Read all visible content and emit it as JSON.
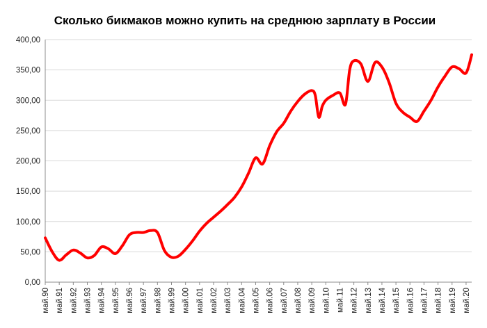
{
  "chart_data": {
    "type": "line",
    "title": "Сколько бикмаков можно купить на среднюю зарплату в России",
    "xlabel": "",
    "ylabel": "",
    "ylim": [
      0,
      400
    ],
    "y_ticks": [
      "0,00",
      "50,00",
      "100,00",
      "150,00",
      "200,00",
      "250,00",
      "300,00",
      "350,00",
      "400,00"
    ],
    "grid": true,
    "legend": "none",
    "line_color": "#ff0000",
    "x_ticks": [
      "май.90",
      "май.91",
      "май.92",
      "май.93",
      "май.94",
      "май.95",
      "май.96",
      "май.97",
      "май.98",
      "май.99",
      "май.00",
      "май.01",
      "май.02",
      "май.03",
      "май.04",
      "май.05",
      "май.06",
      "май.07",
      "май.08",
      "май.09",
      "май.10",
      "май.11",
      "май.12",
      "май.13",
      "май.14",
      "май.15",
      "май.16",
      "май.17",
      "май.18",
      "май.19",
      "май.20"
    ],
    "series": [
      {
        "x": [
          1990,
          1990.5,
          1991,
          1991.5,
          1992,
          1992.5,
          1993,
          1993.5,
          1994,
          1994.5,
          1995,
          1995.5,
          1996,
          1996.5,
          1997,
          1997.5,
          1998,
          1998.5,
          1999,
          1999.5,
          2000,
          2000.5,
          2001,
          2001.5,
          2002,
          2002.5,
          2003,
          2003.5,
          2004,
          2004.5,
          2005,
          2005.5,
          2006,
          2006.5,
          2007,
          2007.5,
          2008,
          2008.5,
          2009,
          2009.25,
          2009.5,
          2009.75,
          2010,
          2010.5,
          2011,
          2011.4,
          2011.7,
          2012,
          2012.5,
          2013,
          2013.5,
          2014,
          2014.5,
          2015,
          2015.5,
          2016,
          2016.5,
          2017,
          2017.5,
          2018,
          2018.5,
          2019,
          2019.5,
          2020,
          2020.4
        ],
        "values": [
          73,
          50,
          36,
          45,
          53,
          48,
          40,
          44,
          58,
          55,
          47,
          60,
          78,
          82,
          82,
          85,
          82,
          52,
          41,
          43,
          54,
          68,
          84,
          97,
          107,
          117,
          128,
          140,
          157,
          180,
          205,
          195,
          225,
          248,
          262,
          282,
          298,
          310,
          316,
          308,
          272,
          290,
          300,
          308,
          312,
          293,
          350,
          365,
          360,
          331,
          362,
          355,
          330,
          295,
          280,
          272,
          265,
          282,
          300,
          322,
          340,
          355,
          352,
          345,
          375
        ]
      }
    ]
  }
}
